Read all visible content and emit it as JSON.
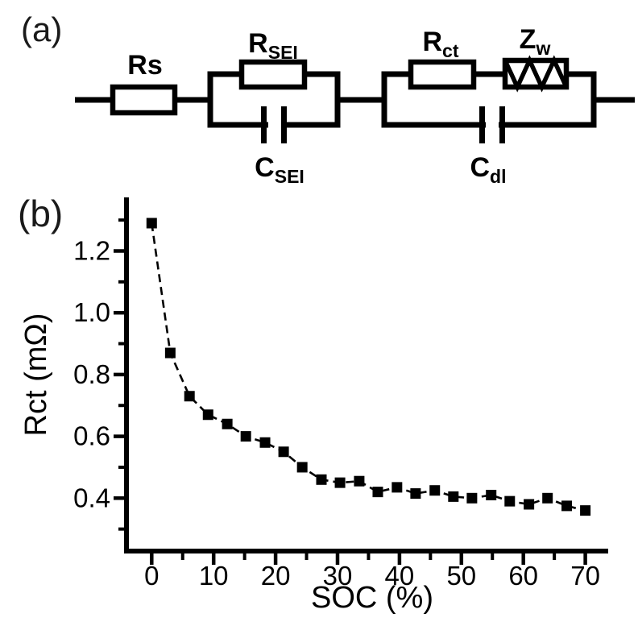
{
  "figure": {
    "panel_a_label": "(a)",
    "panel_b_label": "(b)"
  },
  "circuit": {
    "labels": {
      "rs": {
        "main": "Rs",
        "sub": ""
      },
      "r_sei": {
        "main": "R",
        "sub": "SEI"
      },
      "c_sei": {
        "main": "C",
        "sub": "SEI"
      },
      "r_ct": {
        "main": "R",
        "sub": "ct"
      },
      "z_w": {
        "main": "Z",
        "sub": "w"
      },
      "c_dl": {
        "main": "C",
        "sub": "dl"
      }
    }
  },
  "chart_data": {
    "type": "scatter",
    "title": "",
    "xlabel": "SOC (%)",
    "ylabel": "Rct (mΩ)",
    "xlim": [
      -4,
      74
    ],
    "ylim": [
      0.23,
      1.37
    ],
    "x_ticks": [
      0,
      10,
      20,
      30,
      40,
      50,
      60,
      70
    ],
    "x_minor_ticks": [
      5,
      15,
      25,
      35,
      45,
      55,
      65
    ],
    "y_ticks": [
      0.4,
      0.6,
      0.8,
      1.0,
      1.2
    ],
    "y_minor_ticks": [
      0.3,
      0.5,
      0.7,
      0.9,
      1.1,
      1.3
    ],
    "grid": false,
    "legend": "none",
    "marker": "filled-square",
    "line_style": "dashed",
    "color": "#000000",
    "series": [
      {
        "name": "Rct",
        "x": [
          0,
          3.0,
          6.1,
          9.1,
          12.2,
          15.2,
          18.3,
          21.3,
          24.3,
          27.4,
          30.4,
          33.5,
          36.5,
          39.6,
          42.6,
          45.7,
          48.7,
          51.7,
          54.8,
          57.8,
          60.9,
          63.9,
          67.0,
          70.0
        ],
        "y": [
          1.29,
          0.87,
          0.73,
          0.67,
          0.64,
          0.6,
          0.58,
          0.55,
          0.5,
          0.46,
          0.45,
          0.455,
          0.42,
          0.435,
          0.415,
          0.425,
          0.405,
          0.4,
          0.41,
          0.39,
          0.38,
          0.4,
          0.375,
          0.36
        ]
      }
    ]
  }
}
